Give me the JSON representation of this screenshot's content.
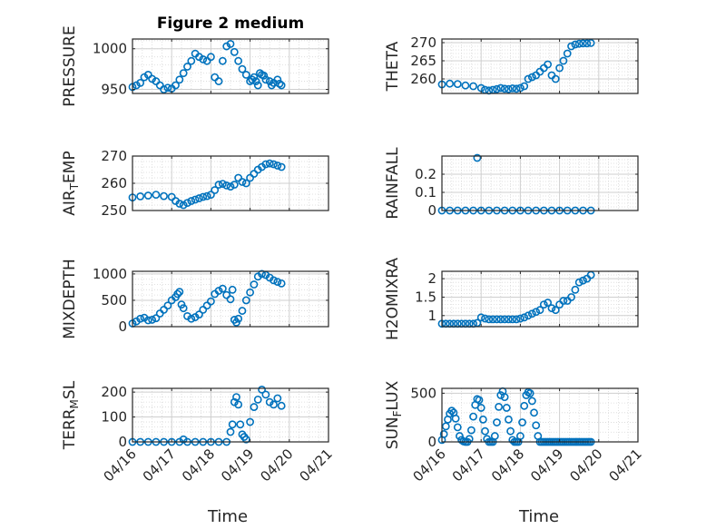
{
  "chart_data": [
    {
      "type": "scatter",
      "title": "Figure 2 medium",
      "ylabel": "PRESSURE",
      "ylim": [
        945,
        1012
      ],
      "yticks": [
        950,
        1000
      ],
      "ytick_labels": [
        "950",
        "1000"
      ],
      "x": [
        0.0,
        0.1,
        0.2,
        0.3,
        0.4,
        0.5,
        0.6,
        0.7,
        0.8,
        0.9,
        1.0,
        1.1,
        1.2,
        1.3,
        1.4,
        1.5,
        1.6,
        1.7,
        1.8,
        1.9,
        2.0,
        2.1,
        2.2,
        2.3,
        2.4,
        2.5,
        2.6,
        2.7,
        2.8,
        2.9,
        3.0,
        3.05,
        3.1,
        3.15,
        3.2,
        3.25,
        3.3,
        3.35,
        3.4,
        3.5,
        3.55,
        3.6,
        3.7,
        3.75,
        3.8
      ],
      "y": [
        953,
        955,
        958,
        965,
        968,
        963,
        960,
        955,
        950,
        952,
        951,
        955,
        962,
        970,
        978,
        985,
        994,
        990,
        987,
        985,
        990,
        965,
        960,
        985,
        1003,
        1006,
        996,
        985,
        975,
        968,
        960,
        962,
        965,
        960,
        955,
        970,
        968,
        967,
        962,
        960,
        955,
        958,
        962,
        957,
        955
      ]
    },
    {
      "type": "scatter",
      "ylabel": "THETA",
      "ylim": [
        256,
        271
      ],
      "yticks": [
        260,
        265,
        270
      ],
      "ytick_labels": [
        "260",
        "265",
        "270"
      ],
      "x": [
        0.0,
        0.2,
        0.4,
        0.6,
        0.8,
        1.0,
        1.1,
        1.2,
        1.3,
        1.4,
        1.5,
        1.6,
        1.7,
        1.8,
        1.9,
        2.0,
        2.1,
        2.2,
        2.3,
        2.4,
        2.5,
        2.6,
        2.7,
        2.8,
        2.9,
        3.0,
        3.1,
        3.2,
        3.3,
        3.4,
        3.5,
        3.6,
        3.7,
        3.8
      ],
      "y": [
        258.5,
        258.7,
        258.6,
        258.2,
        258.0,
        257.5,
        257.0,
        256.8,
        257.0,
        257.2,
        257.5,
        257.3,
        257.2,
        257.4,
        257.3,
        257.5,
        258,
        260,
        260.5,
        261,
        262,
        263,
        264,
        261,
        260,
        263,
        265,
        267,
        269,
        269.5,
        269.7,
        269.8,
        269.8,
        269.9
      ]
    },
    {
      "type": "scatter",
      "ylabel": "AIR_TEMP",
      "ylim": [
        250,
        270
      ],
      "yticks": [
        250,
        260,
        270
      ],
      "ytick_labels": [
        "250",
        "260",
        "270"
      ],
      "x": [
        0.0,
        0.2,
        0.4,
        0.6,
        0.8,
        1.0,
        1.1,
        1.2,
        1.3,
        1.4,
        1.5,
        1.6,
        1.7,
        1.8,
        1.9,
        2.0,
        2.1,
        2.2,
        2.3,
        2.4,
        2.5,
        2.6,
        2.7,
        2.8,
        2.9,
        3.0,
        3.1,
        3.2,
        3.3,
        3.4,
        3.5,
        3.6,
        3.7,
        3.8
      ],
      "y": [
        254.8,
        255.2,
        255.5,
        255.8,
        255.3,
        255.0,
        253.5,
        252.5,
        252.0,
        252.8,
        253.5,
        254.0,
        254.5,
        255.0,
        255.3,
        255.8,
        257.5,
        259.5,
        259.8,
        259.2,
        258.8,
        259.5,
        262.0,
        260.5,
        260.0,
        262.0,
        263.5,
        265.0,
        266.0,
        267.0,
        267.3,
        267.0,
        266.5,
        266.0
      ]
    },
    {
      "type": "scatter",
      "ylabel": "RAINFALL",
      "ylim": [
        0,
        0.3
      ],
      "yticks": [
        0,
        0.1,
        0.2
      ],
      "ytick_labels": [
        "0",
        "0.1",
        "0.2"
      ],
      "x": [
        0.0,
        0.2,
        0.4,
        0.6,
        0.8,
        0.9,
        1.0,
        1.2,
        1.4,
        1.6,
        1.8,
        2.0,
        2.2,
        2.4,
        2.6,
        2.8,
        3.0,
        3.2,
        3.4,
        3.6,
        3.8
      ],
      "y": [
        0,
        0,
        0,
        0,
        0,
        0.29,
        0,
        0,
        0,
        0,
        0,
        0,
        0,
        0,
        0,
        0,
        0,
        0,
        0,
        0,
        0
      ]
    },
    {
      "type": "scatter",
      "ylabel": "MIXDEPTH",
      "ylim": [
        0,
        1050
      ],
      "yticks": [
        0,
        500,
        1000
      ],
      "ytick_labels": [
        "0",
        "500",
        "1000"
      ],
      "x": [
        0.0,
        0.1,
        0.2,
        0.3,
        0.4,
        0.5,
        0.6,
        0.7,
        0.8,
        0.9,
        1.0,
        1.1,
        1.15,
        1.2,
        1.25,
        1.3,
        1.4,
        1.5,
        1.6,
        1.7,
        1.8,
        1.9,
        2.0,
        2.1,
        2.2,
        2.3,
        2.4,
        2.5,
        2.55,
        2.6,
        2.65,
        2.7,
        2.8,
        2.9,
        3.0,
        3.1,
        3.2,
        3.3,
        3.4,
        3.5,
        3.6,
        3.7,
        3.8
      ],
      "y": [
        60,
        100,
        150,
        170,
        120,
        130,
        160,
        250,
        320,
        400,
        500,
        560,
        620,
        660,
        420,
        350,
        200,
        150,
        180,
        230,
        320,
        400,
        480,
        620,
        680,
        720,
        600,
        520,
        700,
        130,
        80,
        150,
        300,
        500,
        650,
        800,
        950,
        1000,
        980,
        930,
        880,
        850,
        820
      ]
    },
    {
      "type": "scatter",
      "ylabel": "H2OMIXRA",
      "ylim": [
        0.7,
        2.2
      ],
      "yticks": [
        1,
        1.5,
        2
      ],
      "ytick_labels": [
        "1",
        "1.5",
        "2"
      ],
      "x": [
        0.0,
        0.1,
        0.2,
        0.3,
        0.4,
        0.5,
        0.6,
        0.7,
        0.8,
        0.9,
        1.0,
        1.1,
        1.2,
        1.3,
        1.4,
        1.5,
        1.6,
        1.7,
        1.8,
        1.9,
        2.0,
        2.1,
        2.2,
        2.3,
        2.4,
        2.5,
        2.6,
        2.7,
        2.8,
        2.9,
        3.0,
        3.1,
        3.2,
        3.3,
        3.4,
        3.5,
        3.6,
        3.7,
        3.8
      ],
      "y": [
        0.78,
        0.78,
        0.78,
        0.78,
        0.78,
        0.78,
        0.78,
        0.78,
        0.78,
        0.8,
        0.95,
        0.92,
        0.9,
        0.9,
        0.9,
        0.9,
        0.9,
        0.9,
        0.9,
        0.9,
        0.92,
        0.95,
        1.0,
        1.05,
        1.1,
        1.15,
        1.3,
        1.35,
        1.2,
        1.15,
        1.3,
        1.4,
        1.4,
        1.5,
        1.7,
        1.9,
        1.95,
        2.0,
        2.1
      ]
    },
    {
      "type": "scatter",
      "ylabel": "TERR_MSL",
      "ylim": [
        0,
        215
      ],
      "yticks": [
        0,
        100,
        200
      ],
      "ytick_labels": [
        "0",
        "100",
        "200"
      ],
      "x": [
        0.0,
        0.2,
        0.4,
        0.6,
        0.8,
        1.0,
        1.2,
        1.3,
        1.4,
        1.6,
        1.8,
        2.0,
        2.2,
        2.4,
        2.5,
        2.55,
        2.6,
        2.65,
        2.7,
        2.75,
        2.8,
        2.85,
        2.9,
        3.0,
        3.1,
        3.2,
        3.3,
        3.4,
        3.5,
        3.6,
        3.7,
        3.8
      ],
      "y": [
        0,
        0,
        0,
        0,
        0,
        0,
        0,
        10,
        0,
        0,
        0,
        0,
        0,
        0,
        40,
        70,
        160,
        180,
        150,
        70,
        30,
        20,
        10,
        80,
        140,
        170,
        210,
        190,
        160,
        150,
        175,
        145
      ]
    },
    {
      "type": "scatter",
      "ylabel": "SUN_FLUX",
      "ylim": [
        0,
        550
      ],
      "yticks": [
        0,
        500
      ],
      "ytick_labels": [
        "0",
        "500"
      ],
      "x": [
        0.0,
        0.05,
        0.1,
        0.15,
        0.2,
        0.25,
        0.3,
        0.35,
        0.4,
        0.45,
        0.5,
        0.55,
        0.6,
        0.65,
        0.7,
        0.75,
        0.8,
        0.85,
        0.9,
        0.95,
        1.0,
        1.05,
        1.1,
        1.15,
        1.2,
        1.25,
        1.3,
        1.35,
        1.4,
        1.45,
        1.5,
        1.55,
        1.6,
        1.65,
        1.7,
        1.75,
        1.8,
        1.85,
        1.9,
        1.95,
        2.0,
        2.05,
        2.1,
        2.15,
        2.2,
        2.25,
        2.3,
        2.35,
        2.4,
        2.45,
        2.5,
        2.55,
        2.6,
        2.65,
        2.7,
        2.75,
        2.8,
        2.85,
        2.9,
        2.95,
        3.0,
        3.05,
        3.1,
        3.15,
        3.2,
        3.25,
        3.3,
        3.35,
        3.4,
        3.45,
        3.5,
        3.55,
        3.6,
        3.65,
        3.7,
        3.75,
        3.8
      ],
      "y": [
        20,
        80,
        160,
        230,
        290,
        320,
        300,
        240,
        150,
        60,
        20,
        5,
        0,
        0,
        30,
        120,
        260,
        380,
        440,
        430,
        350,
        230,
        110,
        30,
        0,
        0,
        0,
        60,
        200,
        360,
        480,
        520,
        460,
        350,
        230,
        110,
        20,
        0,
        0,
        0,
        60,
        200,
        370,
        480,
        510,
        500,
        420,
        300,
        170,
        60,
        0,
        0,
        0,
        0,
        0,
        0,
        0,
        0,
        0,
        0,
        0,
        0,
        0,
        0,
        0,
        0,
        0,
        0,
        0,
        0,
        0,
        0,
        0,
        0,
        0,
        0,
        0
      ]
    }
  ],
  "axes": {
    "x_ticks": [
      0,
      1,
      2,
      3,
      4,
      5
    ],
    "x_tick_labels": [
      "04/16",
      "04/17",
      "04/18",
      "04/19",
      "04/20",
      "04/21"
    ],
    "xlabel": "Time",
    "grid": true,
    "marker_color": "#0072BD"
  }
}
